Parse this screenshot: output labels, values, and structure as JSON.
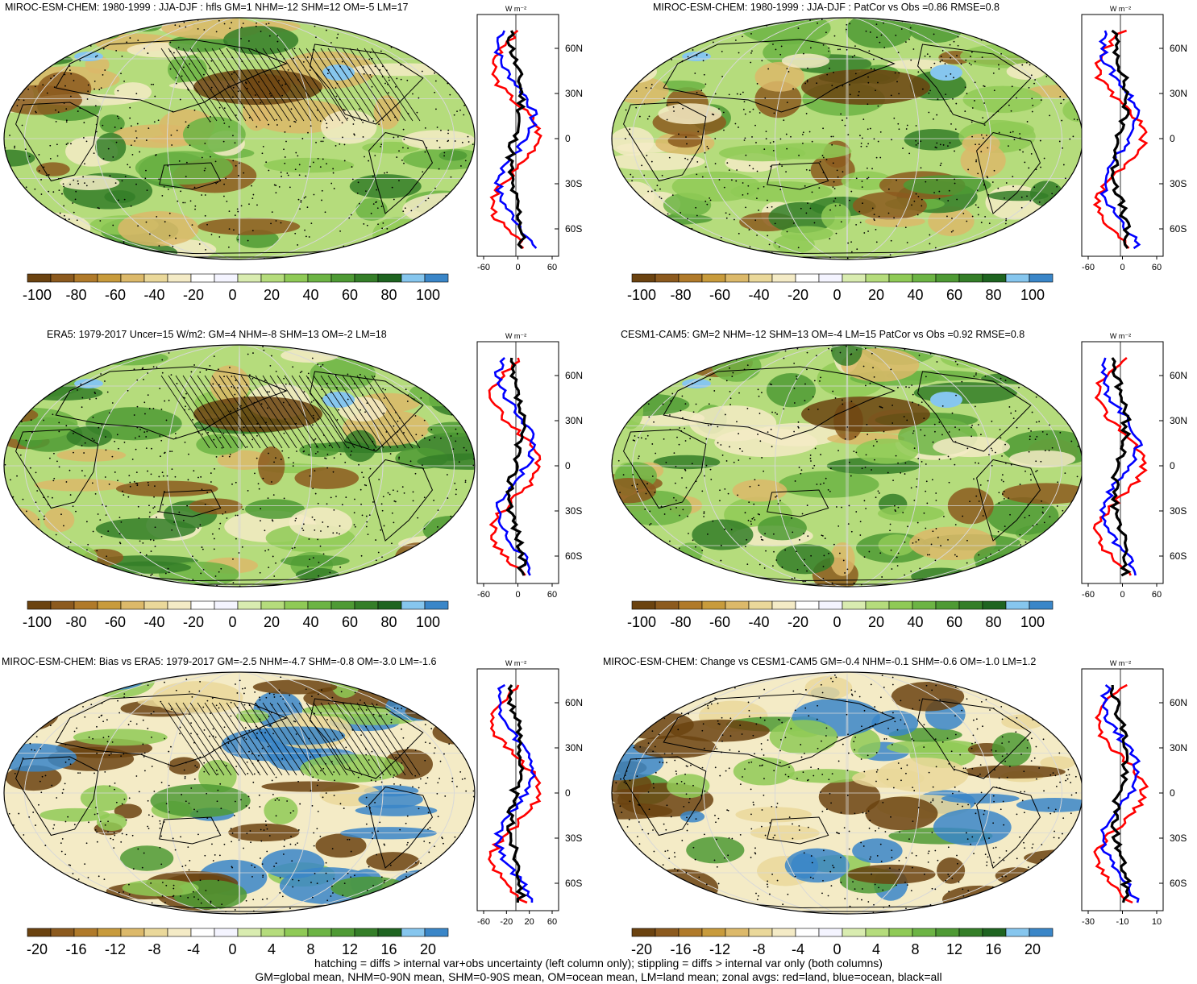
{
  "panels": [
    {
      "title": "MIROC-ESM-CHEM: 1980-1999 : JJA-DJF : hfls GM=1 NHM=-12 SHM=12 OM=-5 LM=17",
      "colorbar_labels": [
        "-100",
        "-80",
        "-60",
        "-40",
        "-20",
        "0",
        "20",
        "40",
        "60",
        "80",
        "100"
      ],
      "profile_unit": "W m⁻²",
      "profile_xticks": [
        "-60",
        "0",
        "60"
      ],
      "lat_labels": [
        "60N",
        "30N",
        "0",
        "30S",
        "60S"
      ],
      "overlay": "hatching+stippling",
      "scheme": "mean"
    },
    {
      "title": "MIROC-ESM-CHEM: 1980-1999 : JJA-DJF : PatCor vs Obs =0.86 RMSE=0.8",
      "colorbar_labels": [
        "-100",
        "-80",
        "-60",
        "-40",
        "-20",
        "0",
        "20",
        "40",
        "60",
        "80",
        "100"
      ],
      "profile_unit": "W m⁻²",
      "profile_xticks": [
        "-60",
        "0",
        "60"
      ],
      "lat_labels": [
        "60N",
        "30N",
        "0",
        "30S",
        "60S"
      ],
      "overlay": "stippling",
      "scheme": "mean"
    },
    {
      "title": "ERA5: 1979-2017 Uncer=15 W/m2: GM=4 NHM=-8 SHM=13 OM=-2 LM=18",
      "colorbar_labels": [
        "-100",
        "-80",
        "-60",
        "-40",
        "-20",
        "0",
        "20",
        "40",
        "60",
        "80",
        "100"
      ],
      "profile_unit": "W m⁻²",
      "profile_xticks": [
        "-60",
        "0",
        "60"
      ],
      "lat_labels": [
        "60N",
        "30N",
        "0",
        "30S",
        "60S"
      ],
      "overlay": "hatching+stippling",
      "scheme": "mean"
    },
    {
      "title": "CESM1-CAM5: GM=2 NHM=-12 SHM=13 OM=-4 LM=15 PatCor vs Obs =0.92 RMSE=0.8",
      "colorbar_labels": [
        "-100",
        "-80",
        "-60",
        "-40",
        "-20",
        "0",
        "20",
        "40",
        "60",
        "80",
        "100"
      ],
      "profile_unit": "W m⁻²",
      "profile_xticks": [
        "-60",
        "0",
        "60"
      ],
      "lat_labels": [
        "60N",
        "30N",
        "0",
        "30S",
        "60S"
      ],
      "overlay": "stippling",
      "scheme": "mean"
    },
    {
      "title": "MIROC-ESM-CHEM: Bias vs ERA5: 1979-2017 GM=-2.5 NHM=-4.7 SHM=-0.8 OM=-3.0 LM=-1.6",
      "colorbar_labels": [
        "-20",
        "-16",
        "-12",
        "-8",
        "-4",
        "0",
        "4",
        "8",
        "12",
        "16",
        "20"
      ],
      "profile_unit": "W m⁻²",
      "profile_xticks": [
        "-60",
        "-20",
        "20",
        "60"
      ],
      "lat_labels": [
        "60N",
        "30N",
        "0",
        "30S",
        "60S"
      ],
      "overlay": "hatching+stippling",
      "scheme": "diff"
    },
    {
      "title": "MIROC-ESM-CHEM: Change vs CESM1-CAM5 GM=-0.4 NHM=-0.1 SHM=-0.6 OM=-1.0 LM=1.2",
      "colorbar_labels": [
        "-20",
        "-16",
        "-12",
        "-8",
        "-4",
        "0",
        "4",
        "8",
        "12",
        "16",
        "20"
      ],
      "profile_unit": "W m⁻²",
      "profile_xticks": [
        "-30",
        "-10",
        "10"
      ],
      "lat_labels": [
        "60N",
        "30N",
        "0",
        "30S",
        "60S"
      ],
      "overlay": "stippling",
      "scheme": "diff"
    }
  ],
  "colorbar_colors": [
    "#6b4310",
    "#8c5a1e",
    "#b07a2a",
    "#c89b3c",
    "#dcb96a",
    "#ead89a",
    "#f4ebc6",
    "#ffffff",
    "#f4f4ff",
    "#d9ecb0",
    "#b5dc7c",
    "#8fca56",
    "#6cb444",
    "#4e9a34",
    "#347e28",
    "#1e6420",
    "#86c6ee",
    "#3a86c8"
  ],
  "profile_colors": {
    "land": "#ff0000",
    "ocean": "#0000ff",
    "all": "#000000"
  },
  "footer": {
    "line1": "hatching = diffs > internal var+obs uncertainty (left column only); stippling = diffs > internal var only (both columns)",
    "line2": "GM=global mean, NHM=0-90N mean, SHM=0-90S mean, OM=ocean mean, LM=land mean; zonal avgs: red=land, blue=ocean, black=all"
  }
}
